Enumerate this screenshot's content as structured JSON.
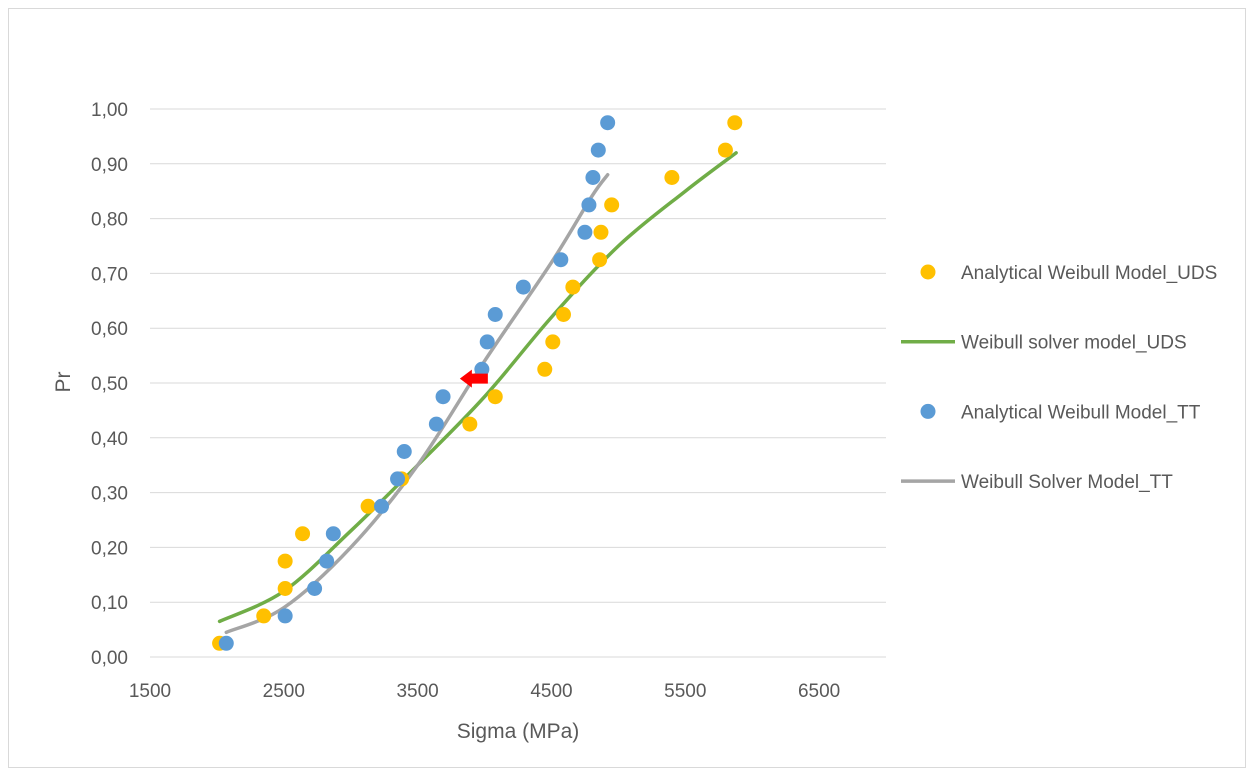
{
  "chart_data": {
    "type": "scatter",
    "xlabel": "Sigma (MPa)",
    "ylabel": "Pr",
    "xlim": [
      1500,
      7000
    ],
    "ylim": [
      0,
      1
    ],
    "x_ticks": [
      1500,
      2500,
      3500,
      4500,
      5500,
      6500
    ],
    "y_ticks": [
      0,
      0.1,
      0.2,
      0.3,
      0.4,
      0.5,
      0.6,
      0.7,
      0.8,
      0.9,
      1.0
    ],
    "x_tick_labels": [
      "1500",
      "2500",
      "3500",
      "4500",
      "5500",
      "6500"
    ],
    "y_tick_labels": [
      "0,00",
      "0,10",
      "0,20",
      "0,30",
      "0,40",
      "0,50",
      "0,60",
      "0,70",
      "0,80",
      "0,90",
      "1,00"
    ],
    "grid": "horizontal",
    "legend_position": "right",
    "series": [
      {
        "name": "Analytical Weibull Model_UDS",
        "kind": "scatter",
        "color": "#ffc000",
        "points": [
          [
            2020,
            0.025
          ],
          [
            2350,
            0.075
          ],
          [
            2510,
            0.125
          ],
          [
            2510,
            0.175
          ],
          [
            2640,
            0.225
          ],
          [
            3130,
            0.275
          ],
          [
            3380,
            0.325
          ],
          [
            3890,
            0.425
          ],
          [
            4080,
            0.475
          ],
          [
            4450,
            0.525
          ],
          [
            4510,
            0.575
          ],
          [
            4590,
            0.625
          ],
          [
            4660,
            0.675
          ],
          [
            4860,
            0.725
          ],
          [
            4870,
            0.775
          ],
          [
            4950,
            0.825
          ],
          [
            5400,
            0.875
          ],
          [
            5800,
            0.925
          ],
          [
            5870,
            0.975
          ]
        ]
      },
      {
        "name": "Weibull solver model_UDS",
        "kind": "line",
        "color": "#70ad47",
        "points": [
          [
            2020,
            0.065
          ],
          [
            2500,
            0.12
          ],
          [
            3000,
            0.23
          ],
          [
            3500,
            0.35
          ],
          [
            4000,
            0.475
          ],
          [
            4500,
            0.62
          ],
          [
            5000,
            0.75
          ],
          [
            5500,
            0.85
          ],
          [
            5880,
            0.92
          ]
        ]
      },
      {
        "name": "Analytical Weibull Model_TT",
        "kind": "scatter",
        "color": "#5b9bd5",
        "points": [
          [
            2070,
            0.025
          ],
          [
            2510,
            0.075
          ],
          [
            2730,
            0.125
          ],
          [
            2820,
            0.175
          ],
          [
            2870,
            0.225
          ],
          [
            3230,
            0.275
          ],
          [
            3350,
            0.325
          ],
          [
            3400,
            0.375
          ],
          [
            3640,
            0.425
          ],
          [
            3690,
            0.475
          ],
          [
            3980,
            0.525
          ],
          [
            4020,
            0.575
          ],
          [
            4080,
            0.625
          ],
          [
            4290,
            0.675
          ],
          [
            4570,
            0.725
          ],
          [
            4750,
            0.775
          ],
          [
            4780,
            0.825
          ],
          [
            4810,
            0.875
          ],
          [
            4850,
            0.925
          ],
          [
            4920,
            0.975
          ]
        ]
      },
      {
        "name": "Weibull Solver Model_TT",
        "kind": "line",
        "color": "#a5a5a5",
        "points": [
          [
            2070,
            0.045
          ],
          [
            2500,
            0.09
          ],
          [
            3000,
            0.2
          ],
          [
            3500,
            0.35
          ],
          [
            4000,
            0.54
          ],
          [
            4500,
            0.72
          ],
          [
            4800,
            0.84
          ],
          [
            4920,
            0.88
          ]
        ]
      }
    ],
    "annotations": [
      {
        "kind": "arrow",
        "color": "#ff0000",
        "direction": "left",
        "x": 3950,
        "y": 0.508
      }
    ]
  }
}
